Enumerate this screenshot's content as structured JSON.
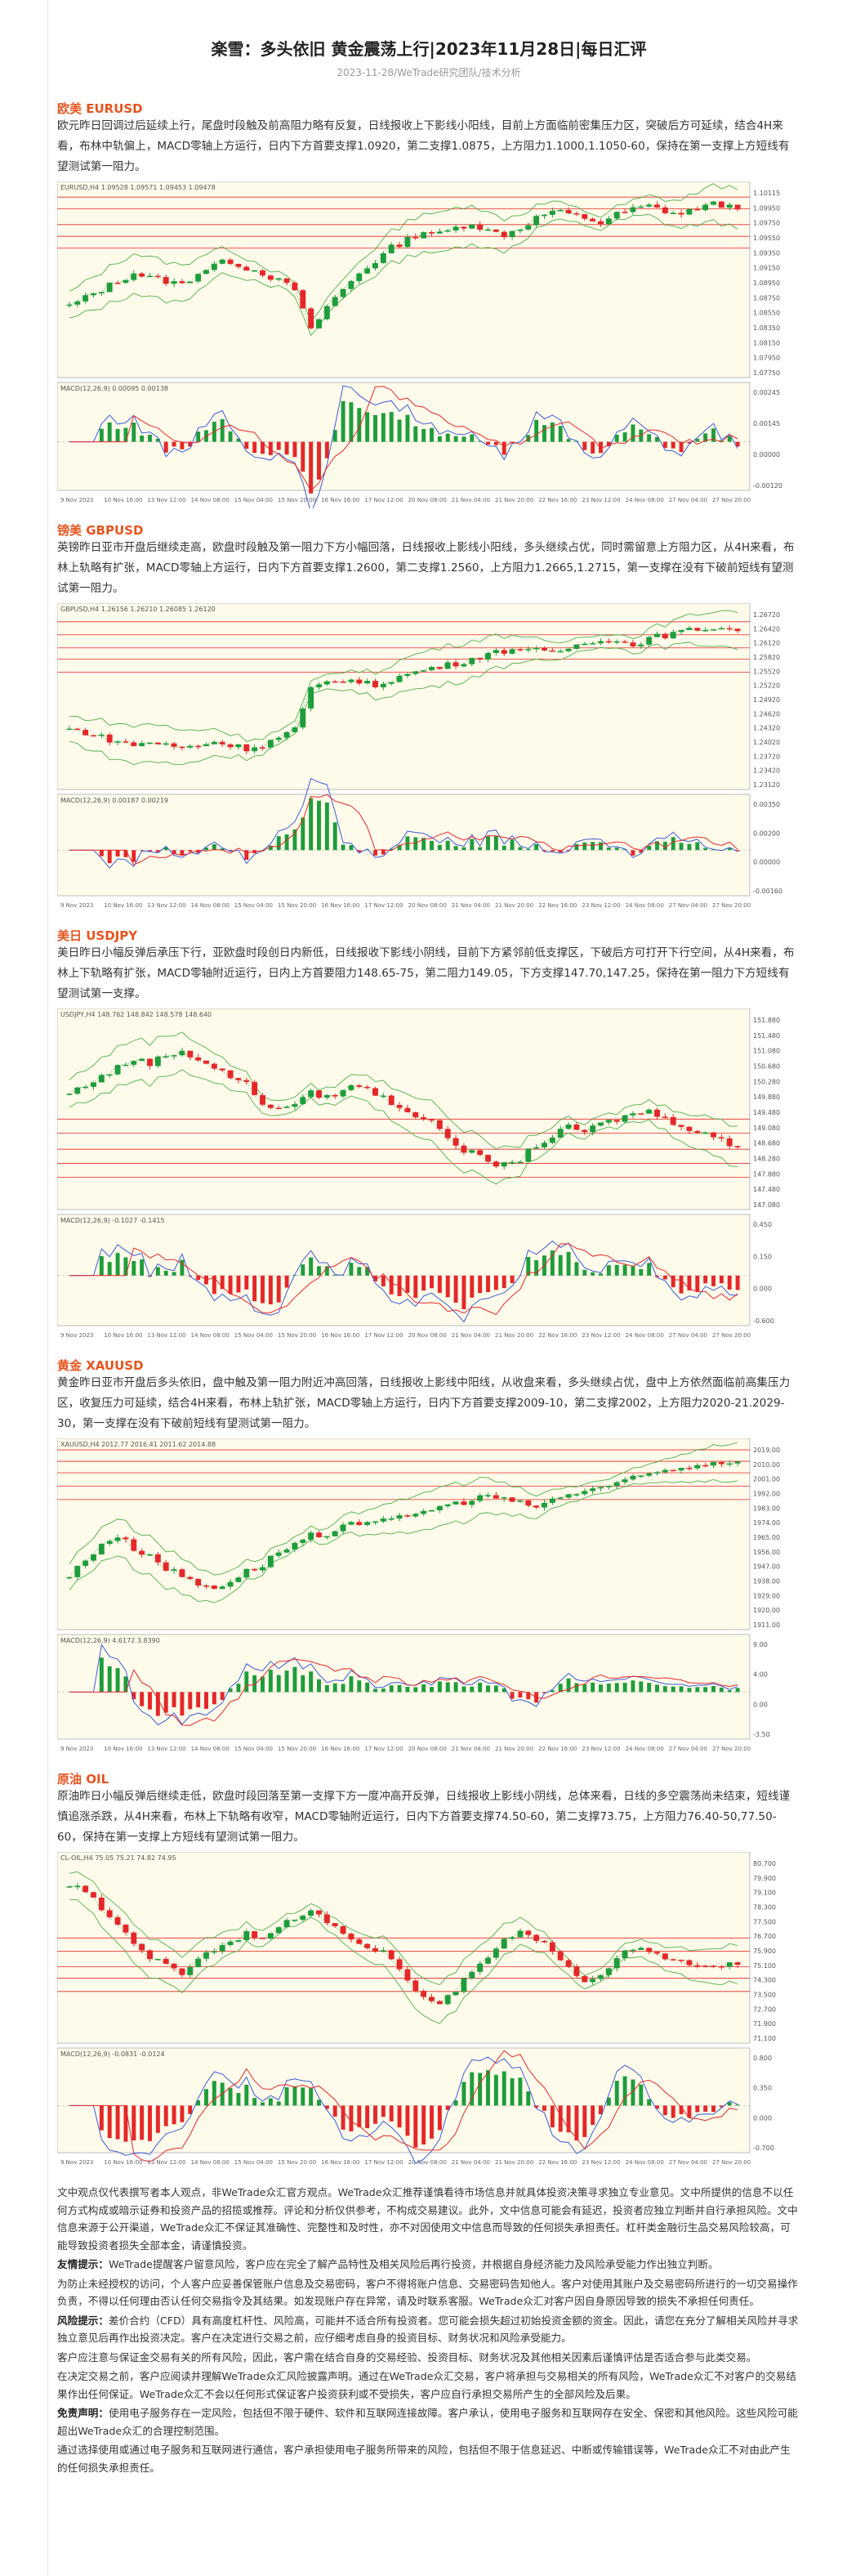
{
  "header": {
    "title": "楽雪：多头依旧 黄金震荡上行|2023年11月28日|每日汇评",
    "subtitle": "2023-11-28/WeTrade研究团队/技术分析"
  },
  "sections": [
    {
      "id": "eurusd",
      "title": "欧美 EURUSD",
      "body": "欧元昨日回调过后延续上行，尾盘时段触及前高阻力略有反复，日线报收上下影线小阳线，目前上方面临前密集压力区，突破后方可延续，结合4H来看，布林中轨偏上，MACD零轴上方运行，日内下方首要支撑1.0920，第二支撑1.0875，上方阻力1.1000,1.1050-60，保持在第一支撑上方短线有望测试第一阻力。",
      "price_labels": [
        "1.10115",
        "1.09950",
        "1.09750",
        "1.09550",
        "1.09350",
        "1.09150",
        "1.08950",
        "1.08750",
        "1.08550",
        "1.08350",
        "1.08150",
        "1.07950",
        "1.07750"
      ],
      "macd_labels": [
        "0.00245",
        "0.00145",
        "0.00000",
        "-0.00120"
      ],
      "chart_header": "EURUSD,H4  1.09528 1.09571 1.09453 1.09478",
      "macd_header": "MACD(12,26,9) 0.00095 0.00138",
      "time_labels": [
        "9 Nov 2023",
        "10 Nov 16:00",
        "13 Nov 12:00",
        "14 Nov 08:00",
        "15 Nov 04:00",
        "15 Nov 20:00",
        "16 Nov 16:00",
        "17 Nov 12:00",
        "20 Nov 08:00",
        "21 Nov 04:00",
        "21 Nov 20:00",
        "22 Nov 16:00",
        "23 Nov 12:00",
        "24 Nov 08:00",
        "27 Nov 04:00",
        "27 Nov 20:00"
      ]
    },
    {
      "id": "gbpusd",
      "title": "镑美 GBPUSD",
      "body": "英镑昨日亚市开盘后继续走高，欧盘时段触及第一阻力下方小幅回落，日线报收上影线小阳线，多头继续占优，同时需留意上方阻力区，从4H来看，布林上轨略有扩张，MACD零轴上方运行，日内下方首要支撑1.2600，第二支撑1.2560，上方阻力1.2665,1.2715，第一支撑在没有下破前短线有望测试第一阻力。",
      "price_labels": [
        "1.26720",
        "1.26420",
        "1.26120",
        "1.25820",
        "1.25520",
        "1.25220",
        "1.24920",
        "1.24620",
        "1.24320",
        "1.24020",
        "1.23720",
        "1.23420",
        "1.23120"
      ],
      "macd_labels": [
        "0.00350",
        "0.00200",
        "0.00000",
        "-0.00160"
      ],
      "chart_header": "GBPUSD,H4  1.26156 1.26210 1.26085 1.26120",
      "macd_header": "MACD(12,26,9) 0.00187 0.00219",
      "time_labels": [
        "9 Nov 2023",
        "10 Nov 16:00",
        "13 Nov 12:00",
        "14 Nov 08:00",
        "15 Nov 04:00",
        "15 Nov 20:00",
        "16 Nov 16:00",
        "17 Nov 12:00",
        "20 Nov 08:00",
        "21 Nov 04:00",
        "21 Nov 20:00",
        "22 Nov 16:00",
        "23 Nov 12:00",
        "24 Nov 08:00",
        "27 Nov 04:00",
        "27 Nov 20:00"
      ]
    },
    {
      "id": "usdjpy",
      "title": "美日 USDJPY",
      "body": "美日昨日小幅反弹后承压下行，亚欧盘时段创日内新低，日线报收下影线小阴线，目前下方紧邻前低支撑区，下破后方可打开下行空间，从4H来看，布林上下轨略有扩张，MACD零轴附近运行，日内上方首要阻力148.65-75，第二阻力149.05，下方支撑147.70,147.25，保持在第一阻力下方短线有望测试第一支撑。",
      "price_labels": [
        "151.880",
        "151.480",
        "151.080",
        "150.680",
        "150.280",
        "149.880",
        "149.480",
        "149.080",
        "148.680",
        "148.280",
        "147.880",
        "147.480",
        "147.080"
      ],
      "macd_labels": [
        "0.450",
        "0.150",
        "0.000",
        "-0.600"
      ],
      "chart_header": "USDJPY,H4  148.762 148.842 148.578 148.640",
      "macd_header": "MACD(12,26,9) -0.1027 -0.1415",
      "time_labels": [
        "9 Nov 2023",
        "10 Nov 16:00",
        "13 Nov 12:00",
        "14 Nov 08:00",
        "15 Nov 04:00",
        "15 Nov 20:00",
        "16 Nov 16:00",
        "17 Nov 12:00",
        "20 Nov 08:00",
        "21 Nov 04:00",
        "21 Nov 20:00",
        "22 Nov 16:00",
        "23 Nov 12:00",
        "24 Nov 08:00",
        "27 Nov 04:00",
        "27 Nov 20:00"
      ]
    },
    {
      "id": "xauusd",
      "title": "黄金 XAUUSD",
      "body": "黄金昨日亚市开盘后多头依旧，盘中触及第一阻力附近冲高回落，日线报收上影线中阳线，从收盘来看，多头继续占优，盘中上方依然面临前高集压力区，收复压力可延续，结合4H来看，布林上轨扩张，MACD零轴上方运行，日内下方首要支撑2009-10，第二支撑2002，上方阻力2020-21.2029-30，第一支撑在没有下破前短线有望测试第一阻力。",
      "price_labels": [
        "2019.00",
        "2010.00",
        "2001.00",
        "1992.00",
        "1983.00",
        "1974.00",
        "1965.00",
        "1956.00",
        "1947.00",
        "1938.00",
        "1929.00",
        "1920.00",
        "1911.00"
      ],
      "macd_labels": [
        "9.00",
        "4.00",
        "0.00",
        "-3.50"
      ],
      "chart_header": "XAUUSD,H4  2012.77 2016.41 2011.62 2014.88",
      "macd_header": "MACD(12,26,9) 4.6172 3.8390",
      "time_labels": [
        "9 Nov 2023",
        "10 Nov 16:00",
        "13 Nov 12:00",
        "14 Nov 08:00",
        "15 Nov 04:00",
        "15 Nov 20:00",
        "16 Nov 16:00",
        "17 Nov 12:00",
        "20 Nov 08:00",
        "21 Nov 04:00",
        "21 Nov 20:00",
        "22 Nov 16:00",
        "23 Nov 12:00",
        "24 Nov 08:00",
        "27 Nov 04:00",
        "27 Nov 20:00"
      ]
    },
    {
      "id": "oil",
      "title": "原油 OIL",
      "body": "原油昨日小幅反弹后继续走低，欧盘时段回落至第一支撑下方一度冲高开反弹，日线报收上影线小阴线，总体来看，日线的多空震荡尚未结束，短线谨慎追涨杀跌，从4H来看，布林上下轨略有收窄，MACD零轴附近运行，日内下方首要支撑74.50-60，第二支撑73.75，上方阻力76.40-50,77.50-60，保持在第一支撑上方短线有望测试第一阻力。",
      "price_labels": [
        "80.700",
        "79.900",
        "79.100",
        "78.300",
        "77.500",
        "76.700",
        "75.900",
        "75.100",
        "74.300",
        "73.500",
        "72.700",
        "71.900",
        "71.100"
      ],
      "macd_labels": [
        "0.800",
        "0.350",
        "0.000",
        "-0.700"
      ],
      "chart_header": "CL-OIL,H4  75.05 75.21 74.82 74.95",
      "macd_header": "MACD(12,26,9) -0.0831 -0.0124",
      "time_labels": [
        "9 Nov 2023",
        "10 Nov 16:00",
        "13 Nov 12:00",
        "14 Nov 08:00",
        "15 Nov 04:00",
        "15 Nov 20:00",
        "16 Nov 16:00",
        "17 Nov 12:00",
        "20 Nov 08:00",
        "21 Nov 04:00",
        "21 Nov 20:00",
        "22 Nov 16:00",
        "23 Nov 12:00",
        "24 Nov 08:00",
        "27 Nov 04:00",
        "27 Nov 20:00"
      ]
    }
  ],
  "disclaimer": {
    "p1": "文中观点仅代表撰写者本人观点，非WeTrade众汇官方观点。WeTrade众汇推荐谨慎看待市场信息并就具体投资决策寻求独立专业意见。文中所提供的信息不以任何方式构成或暗示证券和投资产品的招揽或推荐。评论和分析仅供参考，不构成交易建议。此外，文中信息可能会有延迟，投资者应独立判断并自行承担风险。文中信息来源于公开渠道，WeTrade众汇不保证其准确性、完整性和及时性，亦不对因使用文中信息而导致的任何损失承担责任。杠杆类金融衍生品交易风险较高，可能导致投资者损失全部本金，请谨慎投资。",
    "p2_label": "友情提示：",
    "p2": "WeTrade提醒客户留意风险，客户应在完全了解产品特性及相关风险后再行投资，并根据自身经济能力及风险承受能力作出独立判断。",
    "p3": "为防止未经授权的访问，个人客户应妥善保管账户信息及交易密码，客户不得将账户信息、交易密码告知他人。客户对使用其账户及交易密码所进行的一切交易操作负责，不得以任何理由否认任何交易指令及其结果。如发现账户存在异常，请及时联系客服。WeTrade众汇对客户因自身原因导致的损失不承担任何责任。",
    "p4_label": "风险提示：",
    "p4": "差价合约（CFD）具有高度杠杆性、风险高，可能并不适合所有投资者。您可能会损失超过初始投资金额的资金。因此，请您在充分了解相关风险并寻求独立意见后再作出投资决定。客户在决定进行交易之前，应仔细考虑自身的投资目标、财务状况和风险承受能力。",
    "p5": "客户应注意与保证金交易有关的所有风险，因此，客户需在结合自身的交易经验、投资目标、财务状况及其他相关因素后谨慎评估是否适合参与此类交易。",
    "p6": "在决定交易之前，客户应阅读并理解WeTrade众汇风险披露声明。通过在WeTrade众汇交易，客户将承担与交易相关的所有风险，WeTrade众汇不对客户的交易结果作出任何保证。WeTrade众汇不会以任何形式保证客户投资获利或不受损失，客户应自行承担交易所产生的全部风险及后果。",
    "p7_label": "免责声明：",
    "p7": "使用电子服务存在一定风险，包括但不限于硬件、软件和互联网连接故障。客户承认，使用电子服务和互联网存在安全、保密和其他风险。这些风险可能超出WeTrade众汇的合理控制范围。",
    "p8": "通过选择使用或通过电子服务和互联网进行通信，客户承担使用电子服务所带来的风险，包括但不限于信息延迟、中断或传输错误等，WeTrade众汇不对由此产生的任何损失承担责任。"
  },
  "colors": {
    "title_accent": "#e8541e",
    "bull": "#1e9d3c",
    "bear": "#e5272a",
    "band": "#4caf50",
    "level": "#e5272a",
    "chart_bg": "#fffbea",
    "macd_fast": "#3a5bd9",
    "macd_slow": "#e5272a"
  }
}
